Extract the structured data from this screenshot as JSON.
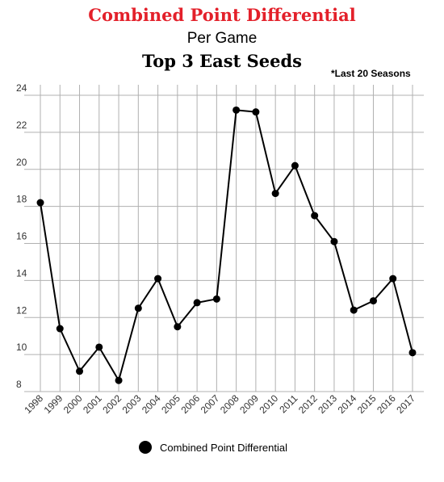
{
  "header": {
    "title": "Combined Point Differential",
    "subtitle": "Per Game",
    "subtitle2": "Top 3 East Seeds",
    "note": "*Last 20 Seasons"
  },
  "colors": {
    "title": "#e3202a",
    "line": "#000000",
    "grid": "#b0b0b0",
    "axis_text": "#333333"
  },
  "legend": {
    "label": "Combined Point Differential",
    "icon": "filled-circle-icon"
  },
  "chart_data": {
    "type": "line",
    "title": "Combined Point Differential",
    "xlabel": "",
    "ylabel": "",
    "ylim": [
      8,
      24
    ],
    "y_ticks": [
      8,
      10,
      12,
      14,
      16,
      18,
      20,
      22,
      24
    ],
    "grid": true,
    "legend_position": "bottom",
    "categories": [
      "1998",
      "1999",
      "2000",
      "2001",
      "2002",
      "2003",
      "2004",
      "2005",
      "2006",
      "2007",
      "2008",
      "2009",
      "2010",
      "2011",
      "2012",
      "2013",
      "2014",
      "2015",
      "2016",
      "2017"
    ],
    "series": [
      {
        "name": "Combined Point Differential",
        "values": [
          18.2,
          11.4,
          9.1,
          10.4,
          8.6,
          12.5,
          14.1,
          11.5,
          12.8,
          13.0,
          23.2,
          23.1,
          18.7,
          20.2,
          17.5,
          16.1,
          12.4,
          12.9,
          14.1,
          10.1
        ]
      }
    ]
  }
}
